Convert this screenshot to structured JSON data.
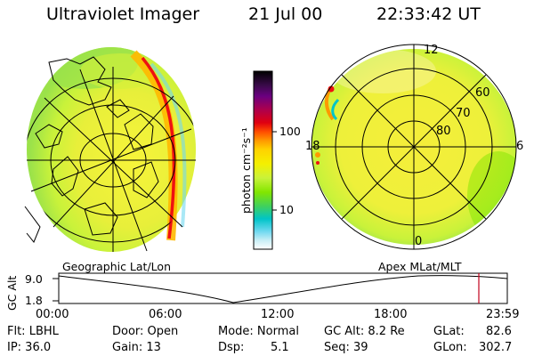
{
  "header": {
    "title": "Ultraviolet Imager",
    "date": "21 Jul 00",
    "time": "22:33:42 UT"
  },
  "colorbar": {
    "unit_label": "photon cm⁻²s⁻¹",
    "ticks": [
      "100",
      "10"
    ],
    "colors": [
      "#000000",
      "#3a0a4a",
      "#6a0080",
      "#b0004a",
      "#e00010",
      "#ff4d00",
      "#ff9900",
      "#ffd200",
      "#f4f000",
      "#c9f23a",
      "#82e600",
      "#3fd05f",
      "#00c4c8",
      "#6fd9f0",
      "#c8eef5",
      "#ffffff"
    ]
  },
  "left_panel": {
    "caption": "Geographic Lat/Lon"
  },
  "right_panel": {
    "caption": "Apex MLat/MLT",
    "lat_labels": [
      "60",
      "70",
      "80"
    ],
    "mlt_labels": [
      "12",
      "6",
      "0",
      "18"
    ]
  },
  "altitude_plot": {
    "y_label": "GC Alt",
    "y_ticks": [
      "9.0",
      "1.8"
    ],
    "x_ticks": [
      "00:00",
      "06:00",
      "12:00",
      "18:00",
      "23:59"
    ],
    "marker_color": "#c0001a"
  },
  "info": {
    "filter": "Flt: LBHL",
    "ip": "IP: 36.0",
    "door": "Door: Open",
    "gain": "Gain: 13",
    "mode": "Mode: Normal",
    "dsp_label": "Dsp:",
    "dsp_value": "5.1",
    "gc_alt": "GC Alt: 8.2 Re",
    "seq": "Seq: 39",
    "glat_label": "GLat:",
    "glat_value": "82.6",
    "glon_label": "GLon:",
    "glon_value": "302.7"
  }
}
